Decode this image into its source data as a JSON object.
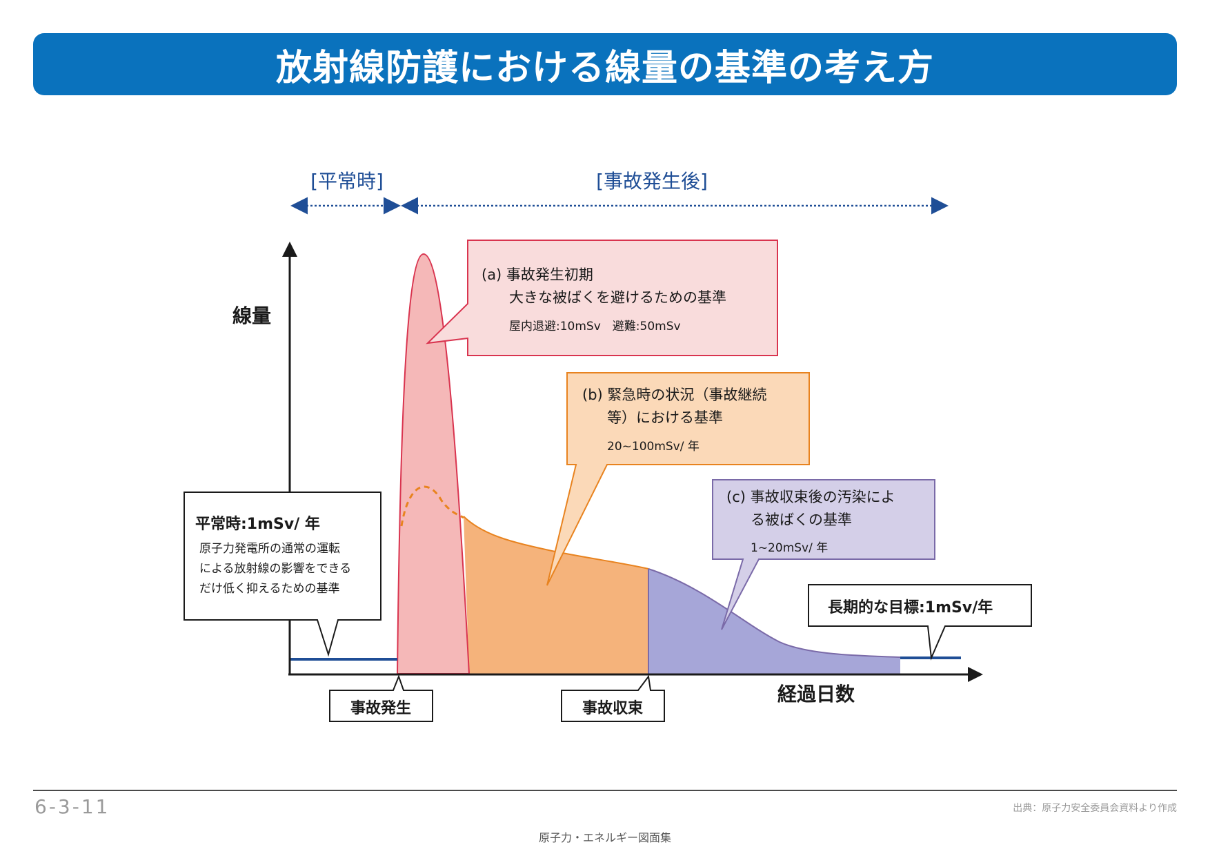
{
  "title": "放射線防護における線量の基準の考え方",
  "periods": {
    "normal": "[平常時]",
    "after": "[事故発生後]"
  },
  "axes": {
    "y_label": "線量",
    "x_label": "経過日数"
  },
  "events": {
    "accident": "事故発生",
    "resolved": "事故収束"
  },
  "callouts": {
    "normal": {
      "title": "平常時:1mSv/ 年",
      "lines": [
        "原子力発電所の通常の運転",
        "による放射線の影響をできる",
        "だけ低く抑えるための基準"
      ]
    },
    "a": {
      "line1": "(a) 事故発生初期",
      "line2": "大きな被ばくを避けるための基準",
      "line3": "屋内退避:10mSv　避難:50mSv"
    },
    "b": {
      "line1": "(b) 緊急時の状況（事故継続",
      "line2": "等）における基準",
      "line3": "20~100mSv/ 年"
    },
    "c": {
      "line1": "(c) 事故収束後の汚染によ",
      "line2": "る被ばくの基準",
      "line3": "1~20mSv/ 年"
    },
    "long_term": "長期的な目標:1mSv/年"
  },
  "footer": {
    "page_number": "6-3-11",
    "source": "出典：原子力安全委員会資料より作成",
    "collection": "原子力・エネルギー図面集"
  },
  "colors": {
    "title_bg": "#0a72bd",
    "navy": "#1f4e96",
    "phase_a_fill": "#f5b8b8",
    "phase_a_stroke": "#d9344f",
    "phase_b_fill": "#f5b37b",
    "phase_b_stroke": "#e8831f",
    "phase_c_fill": "#a6a6d8",
    "phase_c_stroke": "#7a6aa8",
    "box_a_bg": "#f9dcdc",
    "box_b_bg": "#fbd9b8",
    "box_c_bg": "#d4cfe8"
  }
}
